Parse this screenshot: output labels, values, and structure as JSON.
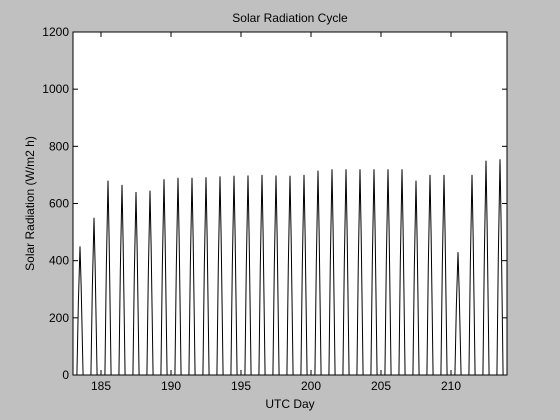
{
  "chart_data": {
    "type": "line",
    "title": "Solar Radiation Cycle",
    "xlabel": "UTC Day",
    "ylabel": "Solar Radiation (W/m2 h)",
    "xlim": [
      183,
      214
    ],
    "ylim": [
      0,
      1200
    ],
    "xticks": [
      185,
      190,
      195,
      200,
      205,
      210
    ],
    "yticks": [
      0,
      200,
      400,
      600,
      800,
      1000,
      1200
    ],
    "grid": false,
    "colors": {
      "line": "#000000",
      "background": "#ffffff",
      "figure": "#c0c0c0"
    },
    "series": [
      {
        "daily_peak_day": [
          183.5,
          184.5,
          185.5,
          186.5,
          187.5,
          188.5,
          189.5,
          190.5,
          191.5,
          192.5,
          193.5,
          194.5,
          195.5,
          196.5,
          197.5,
          198.5,
          199.5,
          200.5,
          201.5,
          202.5,
          203.5,
          204.5,
          205.5,
          206.5,
          207.5,
          208.5,
          209.5,
          210.5,
          211.5,
          212.5,
          213.5
        ],
        "daily_peak_value": [
          450,
          550,
          680,
          665,
          640,
          645,
          685,
          690,
          690,
          692,
          695,
          697,
          698,
          700,
          698,
          697,
          700,
          715,
          720,
          720,
          720,
          720,
          720,
          720,
          680,
          700,
          700,
          430,
          700,
          750,
          755
        ]
      }
    ]
  }
}
